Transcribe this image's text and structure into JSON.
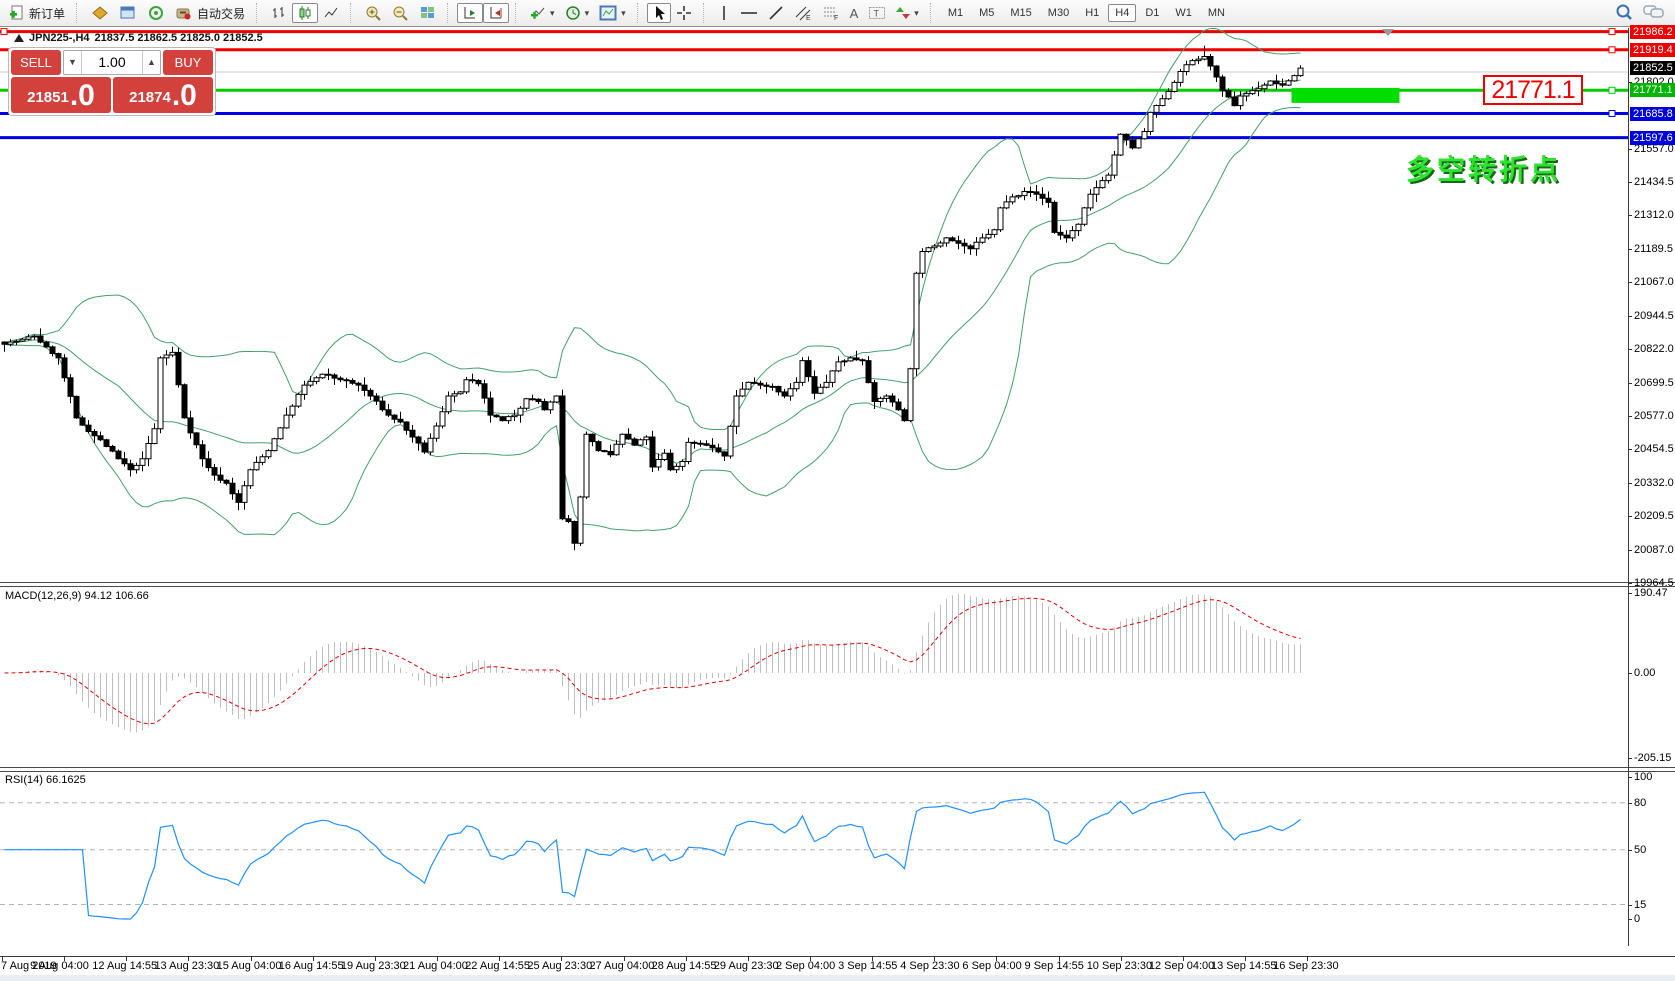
{
  "toolbar": {
    "new_order": "新订单",
    "autotrading": "自动交易",
    "timeframes": [
      "M1",
      "M5",
      "M15",
      "M30",
      "H1",
      "H4",
      "D1",
      "W1",
      "MN"
    ],
    "active_timeframe": "H4"
  },
  "title": {
    "symbol_period": "JPN225-,H4",
    "ohlc": "21837.5 21862.5 21825.0 21852.5"
  },
  "trade_panel": {
    "sell_label": "SELL",
    "buy_label": "BUY",
    "volume": "1.00",
    "sell_price": "21851",
    "sell_pip": ".0",
    "buy_price": "21874",
    "buy_pip": ".0"
  },
  "annotations": {
    "turning_point": "多空转折点",
    "price_callout": "21771.1"
  },
  "price_axis": {
    "badges": [
      {
        "text": "21986.2",
        "bg": "#ee0000"
      },
      {
        "text": "21919.4",
        "bg": "#ee0000"
      },
      {
        "text": "21852.5",
        "bg": "#000000"
      },
      {
        "text": "21771.1",
        "bg": "#00b400"
      },
      {
        "text": "21685.8",
        "bg": "#0000dd"
      },
      {
        "text": "21597.6",
        "bg": "#0000dd"
      }
    ],
    "ticks": [
      "21802.0",
      "21557.0",
      "21434.5",
      "21312.0",
      "21189.5",
      "21067.0",
      "20944.5",
      "20822.0",
      "20699.5",
      "20577.0",
      "20454.5",
      "20332.0",
      "20209.5",
      "20087.0",
      "19964.5"
    ]
  },
  "macd_pane": {
    "label": "MACD(12,26,9)",
    "values": "94.12 106.66",
    "axis_labels": [
      "190.47",
      "0.00",
      "-205.15"
    ]
  },
  "rsi_pane": {
    "label": "RSI(14)",
    "value": "66.1625",
    "axis_labels": [
      "100",
      "80",
      "50",
      "15",
      "0"
    ]
  },
  "time_axis": [
    "7 Aug 2019",
    "9 Aug 04:00",
    "12 Aug 14:55",
    "13 Aug 23:30",
    "15 Aug 04:00",
    "16 Aug 14:55",
    "19 Aug 23:30",
    "21 Aug 04:00",
    "22 Aug 14:55",
    "25 Aug 23:30",
    "27 Aug 04:00",
    "28 Aug 14:55",
    "29 Aug 23:30",
    "2 Sep 04:00",
    "3 Sep 14:55",
    "4 Sep 23:30",
    "6 Sep 04:00",
    "9 Sep 14:55",
    "10 Sep 23:30",
    "12 Sep 04:00",
    "13 Sep 14:55",
    "16 Sep 23:30"
  ],
  "chart_data": {
    "type": "candlestick",
    "symbol": "JPN225-",
    "period": "H4",
    "bars": 217,
    "seed": 7,
    "ylim": [
      19964.5,
      21992.8
    ],
    "current_bid": "21851.0",
    "current_ask": "21874.0",
    "price_waypoints": [
      [
        0,
        20840
      ],
      [
        3,
        20858
      ],
      [
        5,
        20870
      ],
      [
        7,
        20830
      ],
      [
        9,
        20790
      ],
      [
        12,
        20570
      ],
      [
        14,
        20520
      ],
      [
        16,
        20490
      ],
      [
        19,
        20420
      ],
      [
        21,
        20380
      ],
      [
        23,
        20420
      ],
      [
        25,
        20530
      ],
      [
        26,
        20790
      ],
      [
        28,
        20810
      ],
      [
        30,
        20570
      ],
      [
        33,
        20420
      ],
      [
        35,
        20360
      ],
      [
        37,
        20330
      ],
      [
        39,
        20260
      ],
      [
        41,
        20380
      ],
      [
        44,
        20450
      ],
      [
        47,
        20580
      ],
      [
        50,
        20690
      ],
      [
        53,
        20730
      ],
      [
        56,
        20710
      ],
      [
        59,
        20690
      ],
      [
        61,
        20650
      ],
      [
        64,
        20580
      ],
      [
        66,
        20555
      ],
      [
        68,
        20500
      ],
      [
        70,
        20445
      ],
      [
        72,
        20540
      ],
      [
        74,
        20650
      ],
      [
        76,
        20665
      ],
      [
        77,
        20710
      ],
      [
        79,
        20695
      ],
      [
        81,
        20580
      ],
      [
        83,
        20560
      ],
      [
        85,
        20580
      ],
      [
        87,
        20640
      ],
      [
        89,
        20630
      ],
      [
        90,
        20600
      ],
      [
        92,
        20650
      ],
      [
        93,
        20200
      ],
      [
        94,
        20190
      ],
      [
        95,
        20110
      ],
      [
        96,
        20280
      ],
      [
        97,
        20510
      ],
      [
        99,
        20450
      ],
      [
        101,
        20435
      ],
      [
        103,
        20510
      ],
      [
        105,
        20470
      ],
      [
        107,
        20500
      ],
      [
        108,
        20390
      ],
      [
        110,
        20440
      ],
      [
        111,
        20380
      ],
      [
        113,
        20410
      ],
      [
        114,
        20480
      ],
      [
        116,
        20475
      ],
      [
        118,
        20460
      ],
      [
        120,
        20430
      ],
      [
        122,
        20650
      ],
      [
        124,
        20700
      ],
      [
        126,
        20690
      ],
      [
        128,
        20685
      ],
      [
        130,
        20650
      ],
      [
        132,
        20700
      ],
      [
        133,
        20780
      ],
      [
        135,
        20660
      ],
      [
        137,
        20700
      ],
      [
        139,
        20775
      ],
      [
        141,
        20790
      ],
      [
        143,
        20780
      ],
      [
        145,
        20630
      ],
      [
        147,
        20650
      ],
      [
        149,
        20600
      ],
      [
        150,
        20560
      ],
      [
        151,
        20750
      ],
      [
        152,
        21100
      ],
      [
        153,
        21180
      ],
      [
        155,
        21200
      ],
      [
        157,
        21230
      ],
      [
        159,
        21210
      ],
      [
        161,
        21190
      ],
      [
        163,
        21230
      ],
      [
        165,
        21260
      ],
      [
        166,
        21340
      ],
      [
        168,
        21380
      ],
      [
        170,
        21400
      ],
      [
        172,
        21390
      ],
      [
        174,
        21360
      ],
      [
        175,
        21250
      ],
      [
        177,
        21230
      ],
      [
        179,
        21280
      ],
      [
        181,
        21390
      ],
      [
        183,
        21440
      ],
      [
        184,
        21460
      ],
      [
        186,
        21610
      ],
      [
        188,
        21560
      ],
      [
        190,
        21620
      ],
      [
        191,
        21690
      ],
      [
        193,
        21740
      ],
      [
        195,
        21800
      ],
      [
        196,
        21840
      ],
      [
        198,
        21880
      ],
      [
        200,
        21895
      ],
      [
        201,
        21860
      ],
      [
        203,
        21770
      ],
      [
        205,
        21715
      ],
      [
        206,
        21750
      ],
      [
        208,
        21770
      ],
      [
        210,
        21790
      ],
      [
        211,
        21805
      ],
      [
        213,
        21790
      ],
      [
        215,
        21825
      ],
      [
        216,
        21852.5
      ]
    ],
    "wick_overrides": [
      [
        95,
        "low",
        20085
      ],
      [
        200,
        "high",
        21935
      ]
    ],
    "horizontal_lines": [
      {
        "price": 21986.2,
        "color": "#ee0000",
        "width": 3
      },
      {
        "price": 21919.4,
        "color": "#ee0000",
        "width": 3
      },
      {
        "price": 21838.0,
        "color": "#cfcfcf",
        "width": 1
      },
      {
        "price": 21771.1,
        "color": "#00cc00",
        "width": 3
      },
      {
        "price": 21685.8,
        "color": "#0000e8",
        "width": 3
      },
      {
        "price": 21597.6,
        "color": "#0000e8",
        "width": 3
      }
    ],
    "rectangle": {
      "from_bar": 214.5,
      "to_bar": 232.5,
      "top": 21780,
      "bottom": 21725,
      "color": "#00dd00"
    },
    "bollinger": {
      "period": 20,
      "deviation": 2,
      "color": "#44a06a"
    },
    "macd": {
      "fast": 12,
      "slow": 26,
      "signal": 9,
      "current": 94.12,
      "signal_current": 106.66,
      "hist_color": "#bfbfbf",
      "signal_color": "#e00000",
      "axis_max": 190.47,
      "axis_min": -205.15
    },
    "rsi": {
      "period": 14,
      "current": 66.1625,
      "color": "#2090ff",
      "levels": [
        80,
        50,
        15
      ]
    }
  }
}
